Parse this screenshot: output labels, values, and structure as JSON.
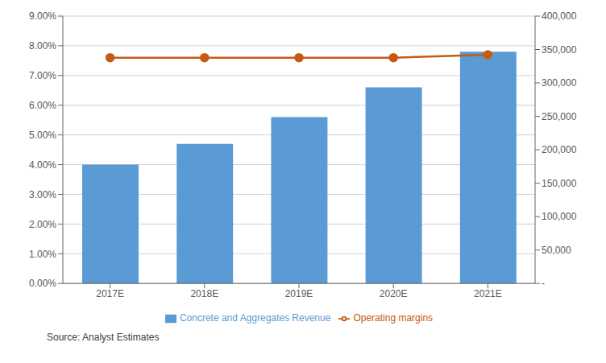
{
  "chart_data": {
    "type": "bar",
    "categories": [
      "2017E",
      "2018E",
      "2019E",
      "2020E",
      "2021E"
    ],
    "series": [
      {
        "name": "Concrete and Aggregates Revenue",
        "type": "bar",
        "color": "#5b9bd5",
        "values": [
          0.04,
          0.047,
          0.056,
          0.066,
          0.078
        ]
      },
      {
        "name": "Operating margins",
        "type": "line",
        "color": "#c55a11",
        "marker": "circle",
        "values": [
          0.076,
          0.076,
          0.076,
          0.076,
          0.077
        ]
      }
    ],
    "ylim": [
      0,
      0.09
    ],
    "yticks": [
      {
        "value": 0.0,
        "label": "0.00%"
      },
      {
        "value": 0.01,
        "label": "1.00%"
      },
      {
        "value": 0.02,
        "label": "2.00%"
      },
      {
        "value": 0.03,
        "label": "3.00%"
      },
      {
        "value": 0.04,
        "label": "4.00%"
      },
      {
        "value": 0.05,
        "label": "5.00%"
      },
      {
        "value": 0.06,
        "label": "6.00%"
      },
      {
        "value": 0.07,
        "label": "7.00%"
      },
      {
        "value": 0.08,
        "label": "8.00%"
      },
      {
        "value": 0.09,
        "label": "9.00%"
      }
    ],
    "y2lim": [
      0,
      400000
    ],
    "y2ticks": [
      {
        "value": 0,
        "label": "-"
      },
      {
        "value": 50000,
        "label": "50,000"
      },
      {
        "value": 100000,
        "label": "100,000"
      },
      {
        "value": 150000,
        "label": "150,000"
      },
      {
        "value": 200000,
        "label": "200,000"
      },
      {
        "value": 250000,
        "label": "250,000"
      },
      {
        "value": 300000,
        "label": "300,000"
      },
      {
        "value": 350000,
        "label": "350,000"
      },
      {
        "value": 400000,
        "label": "400,000"
      }
    ],
    "grid": true,
    "legend": "bottom",
    "annotations": [
      "Source: Analyst Estimates"
    ]
  }
}
